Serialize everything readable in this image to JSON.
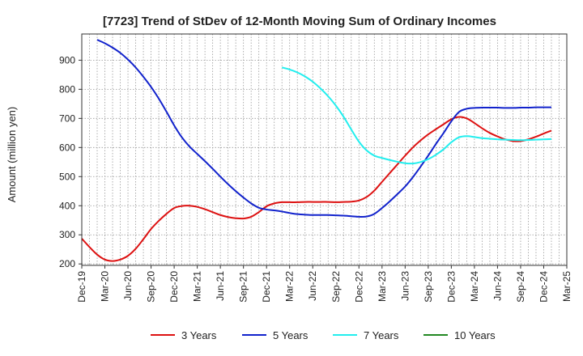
{
  "chart_data": {
    "type": "line",
    "title": "[7723]  Trend of StDev of 12-Month Moving Sum of Ordinary Incomes",
    "ylabel": "Amount (million yen)",
    "xlabel": "",
    "ylim": [
      195,
      990
    ],
    "yticks": [
      200,
      300,
      400,
      500,
      600,
      700,
      800,
      900
    ],
    "x_ticks": [
      "Dec-19",
      "Mar-20",
      "Jun-20",
      "Sep-20",
      "Dec-20",
      "Mar-21",
      "Jun-21",
      "Sep-21",
      "Dec-21",
      "Mar-22",
      "Jun-22",
      "Sep-22",
      "Dec-22",
      "Mar-23",
      "Jun-23",
      "Sep-23",
      "Dec-23",
      "Mar-24",
      "Jun-24",
      "Sep-24",
      "Dec-24",
      "Mar-25"
    ],
    "grid": true,
    "legend_position": "bottom",
    "series": [
      {
        "name": "3 Years",
        "color": "#dd1111",
        "points": [
          [
            "Dec-19",
            287
          ],
          [
            "Jan-20",
            258
          ],
          [
            "Feb-20",
            232
          ],
          [
            "Mar-20",
            215
          ],
          [
            "Apr-20",
            210
          ],
          [
            "May-20",
            215
          ],
          [
            "Jun-20",
            228
          ],
          [
            "Jul-20",
            252
          ],
          [
            "Aug-20",
            285
          ],
          [
            "Sep-20",
            320
          ],
          [
            "Oct-20",
            348
          ],
          [
            "Nov-20",
            372
          ],
          [
            "Dec-20",
            392
          ],
          [
            "Jan-21",
            399
          ],
          [
            "Feb-21",
            400
          ],
          [
            "Mar-21",
            396
          ],
          [
            "Apr-21",
            388
          ],
          [
            "May-21",
            378
          ],
          [
            "Jun-21",
            368
          ],
          [
            "Jul-21",
            361
          ],
          [
            "Aug-21",
            357
          ],
          [
            "Sep-21",
            356
          ],
          [
            "Oct-21",
            362
          ],
          [
            "Nov-21",
            378
          ],
          [
            "Dec-21",
            398
          ],
          [
            "Jan-22",
            408
          ],
          [
            "Feb-22",
            412
          ],
          [
            "Mar-22",
            412
          ],
          [
            "Apr-22",
            412
          ],
          [
            "May-22",
            413
          ],
          [
            "Jun-22",
            413
          ],
          [
            "Jul-22",
            413
          ],
          [
            "Aug-22",
            413
          ],
          [
            "Sep-22",
            412
          ],
          [
            "Oct-22",
            413
          ],
          [
            "Nov-22",
            414
          ],
          [
            "Dec-22",
            418
          ],
          [
            "Jan-23",
            430
          ],
          [
            "Feb-23",
            452
          ],
          [
            "Mar-23",
            482
          ],
          [
            "Apr-23",
            512
          ],
          [
            "May-23",
            542
          ],
          [
            "Jun-23",
            572
          ],
          [
            "Jul-23",
            600
          ],
          [
            "Aug-23",
            624
          ],
          [
            "Sep-23",
            645
          ],
          [
            "Oct-23",
            663
          ],
          [
            "Nov-23",
            680
          ],
          [
            "Dec-23",
            697
          ],
          [
            "Jan-24",
            705
          ],
          [
            "Feb-24",
            700
          ],
          [
            "Mar-24",
            684
          ],
          [
            "Apr-24",
            666
          ],
          [
            "May-24",
            650
          ],
          [
            "Jun-24",
            638
          ],
          [
            "Jul-24",
            628
          ],
          [
            "Aug-24",
            622
          ],
          [
            "Sep-24",
            622
          ],
          [
            "Oct-24",
            628
          ],
          [
            "Nov-24",
            637
          ],
          [
            "Dec-24",
            648
          ],
          [
            "Jan-25",
            658
          ]
        ]
      },
      {
        "name": "5 Years",
        "color": "#1122cc",
        "points": [
          [
            "Feb-20",
            970
          ],
          [
            "Mar-20",
            958
          ],
          [
            "Apr-20",
            943
          ],
          [
            "May-20",
            925
          ],
          [
            "Jun-20",
            902
          ],
          [
            "Jul-20",
            875
          ],
          [
            "Aug-20",
            843
          ],
          [
            "Sep-20",
            808
          ],
          [
            "Oct-20",
            768
          ],
          [
            "Nov-20",
            723
          ],
          [
            "Dec-20",
            676
          ],
          [
            "Jan-21",
            635
          ],
          [
            "Feb-21",
            603
          ],
          [
            "Mar-21",
            578
          ],
          [
            "Apr-21",
            553
          ],
          [
            "May-21",
            527
          ],
          [
            "Jun-21",
            500
          ],
          [
            "Jul-21",
            474
          ],
          [
            "Aug-21",
            450
          ],
          [
            "Sep-21",
            428
          ],
          [
            "Oct-21",
            408
          ],
          [
            "Nov-21",
            393
          ],
          [
            "Dec-21",
            387
          ],
          [
            "Jan-22",
            384
          ],
          [
            "Feb-22",
            380
          ],
          [
            "Mar-22",
            375
          ],
          [
            "Apr-22",
            371
          ],
          [
            "May-22",
            369
          ],
          [
            "Jun-22",
            368
          ],
          [
            "Jul-22",
            368
          ],
          [
            "Aug-22",
            368
          ],
          [
            "Sep-22",
            367
          ],
          [
            "Oct-22",
            366
          ],
          [
            "Nov-22",
            364
          ],
          [
            "Dec-22",
            362
          ],
          [
            "Jan-23",
            363
          ],
          [
            "Feb-23",
            372
          ],
          [
            "Mar-23",
            392
          ],
          [
            "Apr-23",
            415
          ],
          [
            "May-23",
            440
          ],
          [
            "Jun-23",
            466
          ],
          [
            "Jul-23",
            498
          ],
          [
            "Aug-23",
            534
          ],
          [
            "Sep-23",
            572
          ],
          [
            "Oct-23",
            612
          ],
          [
            "Nov-23",
            650
          ],
          [
            "Dec-23",
            690
          ],
          [
            "Jan-24",
            722
          ],
          [
            "Feb-24",
            733
          ],
          [
            "Mar-24",
            736
          ],
          [
            "Apr-24",
            737
          ],
          [
            "May-24",
            737
          ],
          [
            "Jun-24",
            737
          ],
          [
            "Jul-24",
            736
          ],
          [
            "Aug-24",
            736
          ],
          [
            "Sep-24",
            737
          ],
          [
            "Oct-24",
            737
          ],
          [
            "Nov-24",
            738
          ],
          [
            "Dec-24",
            738
          ],
          [
            "Jan-25",
            738
          ]
        ]
      },
      {
        "name": "7 Years",
        "color": "#22eeee",
        "points": [
          [
            "Feb-22",
            875
          ],
          [
            "Mar-22",
            868
          ],
          [
            "Apr-22",
            858
          ],
          [
            "May-22",
            844
          ],
          [
            "Jun-22",
            826
          ],
          [
            "Jul-22",
            803
          ],
          [
            "Aug-22",
            776
          ],
          [
            "Sep-22",
            744
          ],
          [
            "Oct-22",
            706
          ],
          [
            "Nov-22",
            662
          ],
          [
            "Dec-22",
            620
          ],
          [
            "Jan-23",
            590
          ],
          [
            "Feb-23",
            572
          ],
          [
            "Mar-23",
            564
          ],
          [
            "Apr-23",
            557
          ],
          [
            "May-23",
            551
          ],
          [
            "Jun-23",
            546
          ],
          [
            "Jul-23",
            545
          ],
          [
            "Aug-23",
            550
          ],
          [
            "Sep-23",
            560
          ],
          [
            "Oct-23",
            575
          ],
          [
            "Nov-23",
            594
          ],
          [
            "Dec-23",
            618
          ],
          [
            "Jan-24",
            635
          ],
          [
            "Feb-24",
            639
          ],
          [
            "Mar-24",
            636
          ],
          [
            "Apr-24",
            632
          ],
          [
            "May-24",
            630
          ],
          [
            "Jun-24",
            628
          ],
          [
            "Jul-24",
            627
          ],
          [
            "Aug-24",
            626
          ],
          [
            "Sep-24",
            625
          ],
          [
            "Oct-24",
            626
          ],
          [
            "Nov-24",
            627
          ],
          [
            "Dec-24",
            628
          ],
          [
            "Jan-25",
            629
          ]
        ]
      },
      {
        "name": "10 Years",
        "color": "#228822",
        "points": []
      }
    ]
  }
}
